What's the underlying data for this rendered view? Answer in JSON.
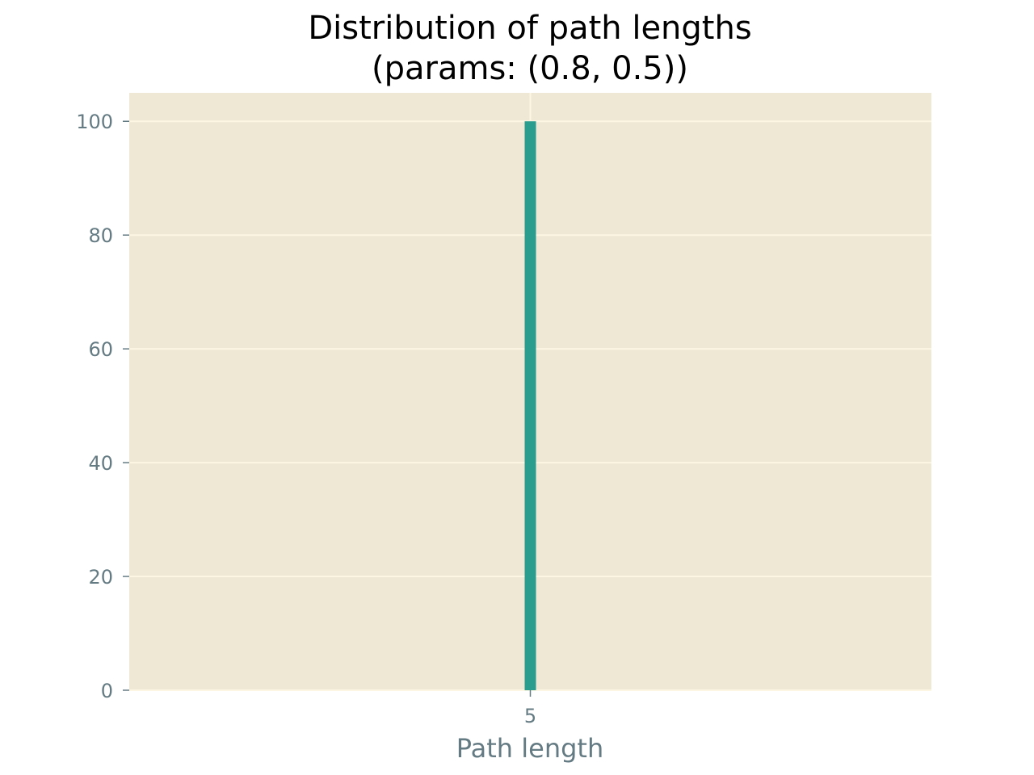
{
  "chart_data": {
    "type": "bar",
    "title": "Distribution of path lengths\n(params: (0.8, 0.5))",
    "title_lines": [
      "Distribution of path lengths",
      "(params: (0.8, 0.5))"
    ],
    "xlabel": "Path length",
    "ylabel": "",
    "x": [
      5
    ],
    "values": [
      100
    ],
    "x_ticks": [
      5
    ],
    "y_ticks": [
      0,
      20,
      40,
      60,
      80,
      100
    ],
    "xlim": [
      3,
      7
    ],
    "ylim": [
      0,
      105
    ],
    "grid": true,
    "colors": {
      "bar": "#2a9d8f",
      "plot_background": "#eee8d5",
      "grid": "#fdf6e3",
      "tick_text": "#657b83",
      "title": "#000000"
    }
  }
}
